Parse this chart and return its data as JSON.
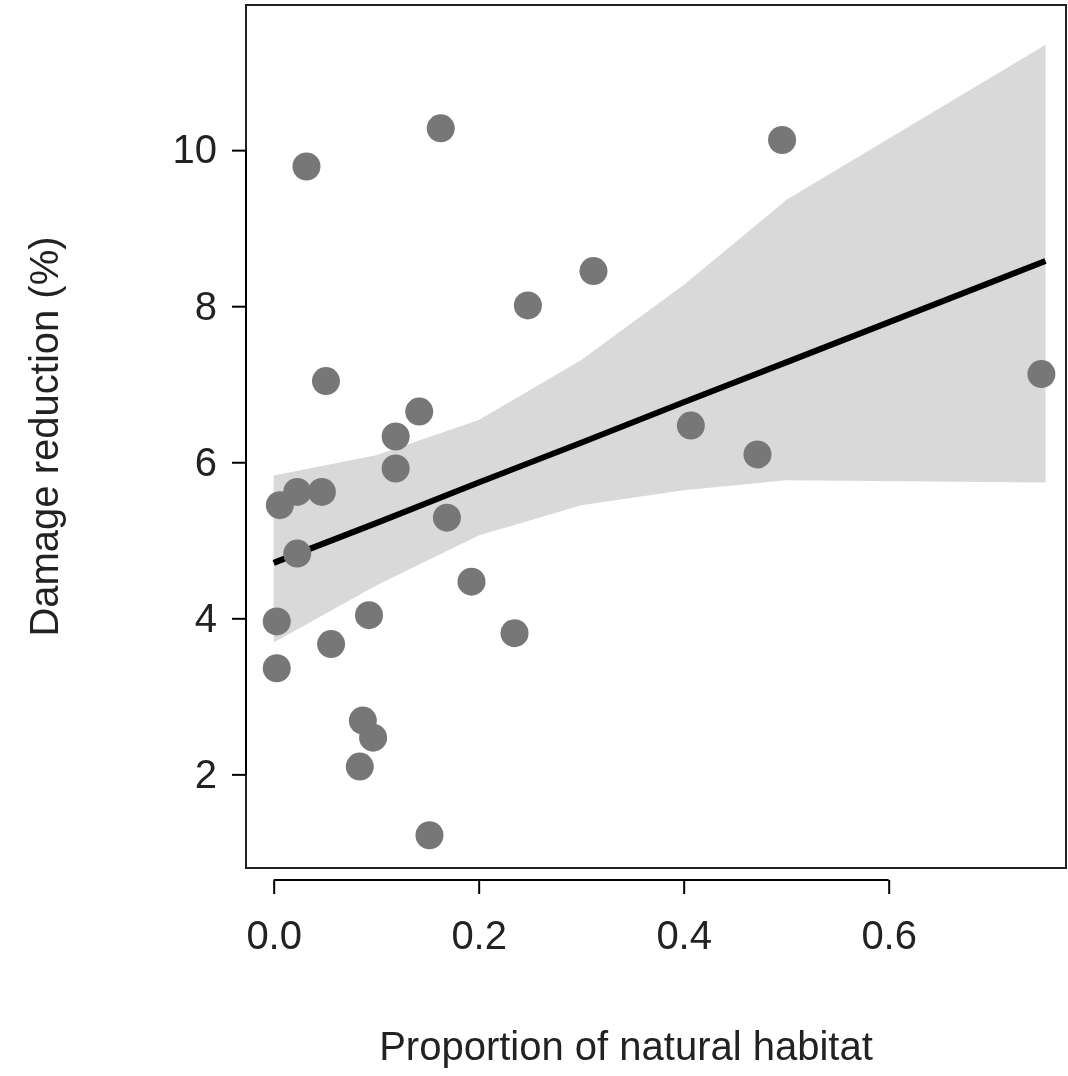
{
  "chart_data": {
    "type": "scatter",
    "xlabel": "Proportion of natural habitat",
    "ylabel": "Damage reduction (%)",
    "xlim": [
      -0.027,
      0.773
    ],
    "ylim": [
      0.8,
      11.86
    ],
    "xticks": [
      {
        "value": 0,
        "label": "0.0"
      },
      {
        "value": 0.2,
        "label": "0.2"
      },
      {
        "value": 0.4,
        "label": "0.4"
      },
      {
        "value": 0.6,
        "label": "0.6"
      }
    ],
    "yticks": [
      2,
      4,
      6,
      8,
      10
    ],
    "grid": false,
    "series": [
      {
        "marker": "circle",
        "color": "#777777",
        "x": [
          0.006,
          0.023,
          0.047,
          0.023,
          0.003,
          0.003,
          0.032,
          0.051,
          0.056,
          0.093,
          0.087,
          0.097,
          0.084,
          0.119,
          0.119,
          0.142,
          0.163,
          0.169,
          0.193,
          0.152,
          0.235,
          0.248,
          0.312,
          0.407,
          0.472,
          0.496,
          0.749
        ],
        "values": [
          5.45,
          5.62,
          5.62,
          4.83,
          3.96,
          3.36,
          9.79,
          7.04,
          3.67,
          4.04,
          2.69,
          2.47,
          2.1,
          6.33,
          5.92,
          6.65,
          10.28,
          5.29,
          4.47,
          1.22,
          3.81,
          8.01,
          8.45,
          6.47,
          6.1,
          10.13,
          7.13
        ]
      },
      {
        "type": "line",
        "color": "#000000",
        "line_style": "solid",
        "x": [
          0,
          0.1,
          0.2,
          0.3,
          0.4,
          0.5,
          0.753
        ],
        "values": [
          4.71,
          5.22,
          5.74,
          6.25,
          6.77,
          7.28,
          8.58
        ],
        "lower": [
          3.69,
          4.42,
          5.06,
          5.45,
          5.64,
          5.77,
          5.74
        ],
        "upper": [
          5.83,
          6.09,
          6.54,
          7.31,
          8.27,
          9.36,
          11.35
        ]
      }
    ]
  }
}
